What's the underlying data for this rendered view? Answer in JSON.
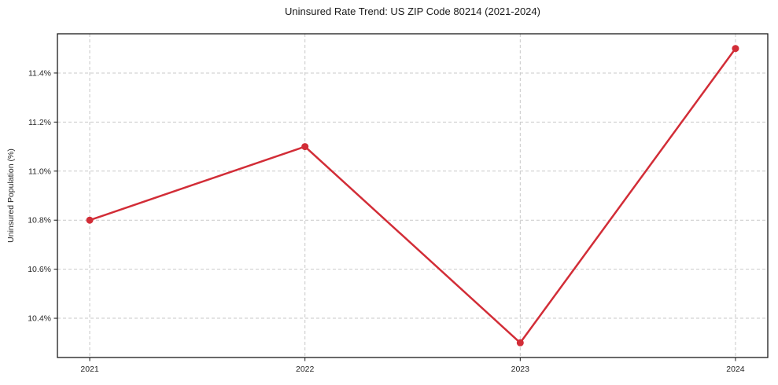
{
  "chart_data": {
    "type": "line",
    "title": "Uninsured Rate Trend: US ZIP Code 80214 (2021-2024)",
    "xlabel": "",
    "ylabel": "Uninsured Population (%)",
    "x": [
      2021,
      2022,
      2023,
      2024
    ],
    "series": [
      {
        "name": "Uninsured rate",
        "values": [
          10.8,
          11.1,
          10.3,
          11.5
        ]
      }
    ],
    "xticks": [
      2021,
      2022,
      2023,
      2024
    ],
    "xtick_labels": [
      "2021",
      "2022",
      "2023",
      "2024"
    ],
    "yticks": [
      10.4,
      10.6,
      10.8,
      11.0,
      11.2,
      11.4
    ],
    "ytick_labels": [
      "10.4%",
      "10.6%",
      "10.8%",
      "11.0%",
      "11.2%",
      "11.4%"
    ],
    "xlim": [
      2020.85,
      2024.15
    ],
    "ylim": [
      10.24,
      11.56
    ],
    "grid": true,
    "grid_style": "dashed",
    "legend_position": "none",
    "style": {
      "line_color": "#d22d37",
      "marker_color": "#d22d37",
      "grid_color": "#c9c9c9",
      "spine_color": "#1a1a1a",
      "tick_color": "#1a1a1a",
      "text_color": "#262626",
      "line_width": 2.5,
      "marker_radius": 4.5,
      "grid_dash": "4 3"
    }
  }
}
